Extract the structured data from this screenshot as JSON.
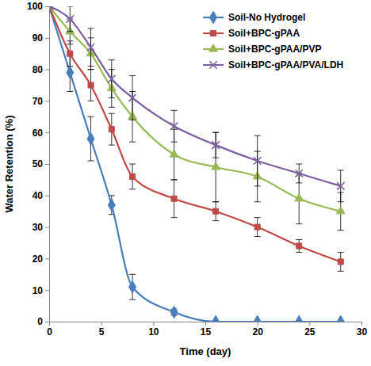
{
  "chart_data": {
    "type": "line",
    "x_label": "Time (day)",
    "y_label": "Water Retention (%)",
    "x": [
      0,
      2,
      4,
      6,
      8,
      12,
      16,
      20,
      24,
      28
    ],
    "xlim": [
      0,
      30
    ],
    "xticks": [
      0,
      5,
      10,
      15,
      20,
      25,
      30
    ],
    "ylim": [
      0,
      100
    ],
    "yticks": [
      0,
      10,
      20,
      30,
      40,
      50,
      60,
      70,
      80,
      90,
      100
    ],
    "grid": false,
    "legend": "top-right",
    "series": [
      {
        "name": "Soil-No Hydrogel",
        "color": "#4a7ebb",
        "marker": "diamond",
        "line_style": "solid",
        "values": [
          100,
          79,
          58,
          37,
          11,
          3,
          0,
          0,
          0,
          0
        ],
        "errors": [
          0,
          6,
          7,
          3,
          4,
          1,
          0,
          0,
          0,
          0
        ]
      },
      {
        "name": "Soil+BPC-gPAA",
        "color": "#be4b48",
        "marker": "square",
        "line_style": "solid",
        "values": [
          100,
          85,
          75,
          61,
          46,
          39,
          35,
          30,
          24,
          19
        ],
        "errors": [
          0,
          4,
          5,
          5,
          4,
          6,
          3,
          3,
          2,
          3
        ]
      },
      {
        "name": "Soil+BPC-gPAA/PVP",
        "color": "#98b954",
        "marker": "triangle",
        "line_style": "solid",
        "values": [
          100,
          92,
          85,
          74,
          65,
          53,
          49,
          46,
          39,
          35
        ],
        "errors": [
          0,
          4,
          5,
          6,
          8,
          8,
          11,
          8,
          8,
          6
        ]
      },
      {
        "name": "Soil+BPC-gPAA/PVA/LDH",
        "color": "#7d60a0",
        "marker": "x",
        "line_style": "solid",
        "values": [
          100,
          96,
          87,
          77,
          71,
          62,
          56,
          51,
          47,
          43
        ],
        "errors": [
          0,
          4,
          6,
          6,
          7,
          5,
          4,
          8,
          3,
          5
        ]
      }
    ]
  }
}
